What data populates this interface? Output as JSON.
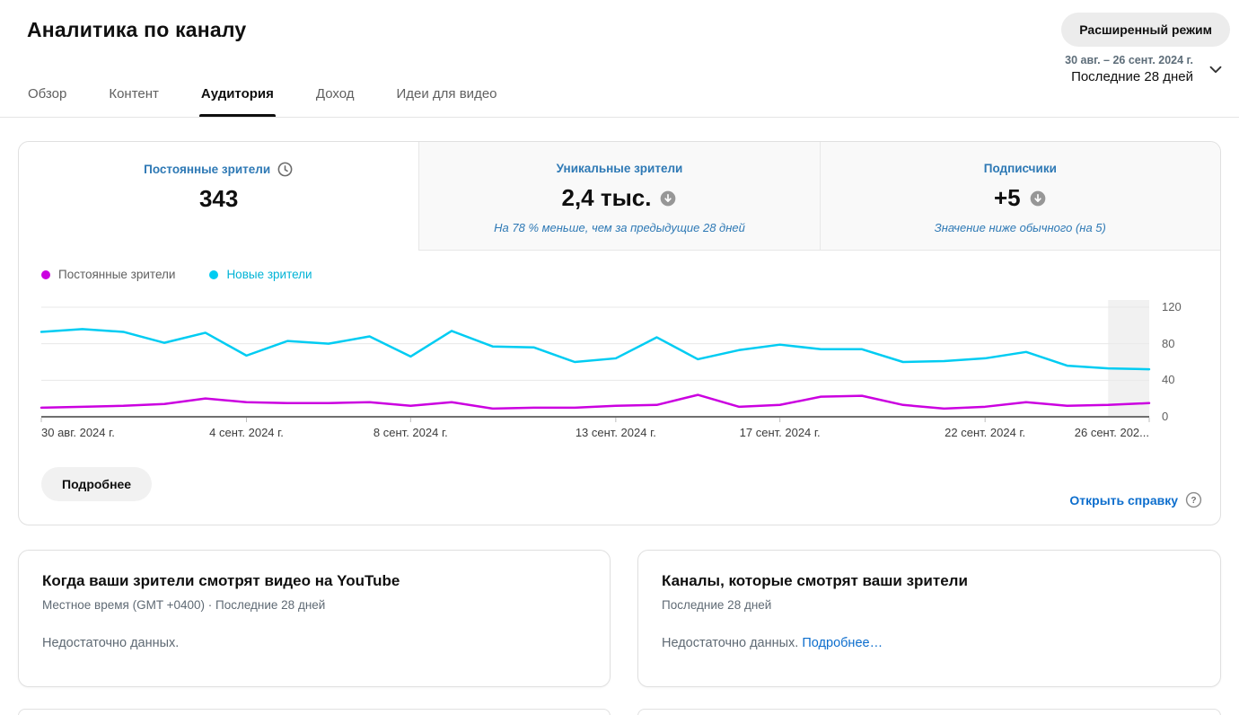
{
  "header": {
    "title": "Аналитика по каналу",
    "advanced_mode": "Расширенный режим",
    "tabs": [
      {
        "label": "Обзор"
      },
      {
        "label": "Контент"
      },
      {
        "label": "Аудитория"
      },
      {
        "label": "Доход"
      },
      {
        "label": "Идеи для видео"
      }
    ],
    "active_tab": "Аудитория",
    "date_range": "30 авг. – 26 сент. 2024 г.",
    "date_preset": "Последние 28 дней"
  },
  "metrics": [
    {
      "label": "Постоянные зрители",
      "value": "343",
      "icon": "clock-icon",
      "selected": true,
      "subtext": ""
    },
    {
      "label": "Уникальные зрители",
      "value": "2,4 тыс.",
      "icon": "arrow-down-circle-icon",
      "selected": false,
      "subtext": "На 78 % меньше, чем за предыдущие 28 дней"
    },
    {
      "label": "Подписчики",
      "value": "+5",
      "icon": "arrow-down-circle-icon",
      "selected": false,
      "subtext": "Значение ниже обычного (на 5)"
    }
  ],
  "chart_data": {
    "type": "line",
    "title": "Постоянные и новые зрители по дням",
    "n_points": 28,
    "x_start_date": "30 авг. 2024 г.",
    "x_end_date": "26 сент. 2024 г.",
    "x_ticks": [
      {
        "label": "30 авг. 2024 г.",
        "day": 0,
        "align": "left"
      },
      {
        "label": "4 сент. 2024 г.",
        "day": 5,
        "align": "center"
      },
      {
        "label": "8 сент. 2024 г.",
        "day": 9,
        "align": "center"
      },
      {
        "label": "13 сент. 2024 г.",
        "day": 14,
        "align": "center"
      },
      {
        "label": "17 сент. 2024 г.",
        "day": 18,
        "align": "center"
      },
      {
        "label": "22 сент. 2024 г.",
        "day": 23,
        "align": "center"
      },
      {
        "label": "26 сент. 202...",
        "day": 27,
        "align": "right"
      }
    ],
    "yticks": [
      0,
      40,
      80,
      120
    ],
    "ylim": [
      0,
      128
    ],
    "grid": true,
    "legend_position": "top-left",
    "shaded_from_index": 26,
    "shaded_band_color": "#f1f1f1",
    "series": [
      {
        "name": "Постоянные зрители",
        "color": "#cb00e0",
        "legend_text_color": "#606060",
        "values": [
          10,
          11,
          12,
          14,
          20,
          16,
          15,
          15,
          16,
          12,
          16,
          9,
          10,
          10,
          12,
          13,
          24,
          11,
          13,
          22,
          23,
          13,
          9,
          11,
          16,
          12,
          13,
          15
        ]
      },
      {
        "name": "Новые зрители",
        "color": "#00ccf2",
        "legend_text_color": "#00b3d6",
        "values": [
          93,
          96,
          93,
          81,
          92,
          67,
          83,
          80,
          88,
          66,
          94,
          77,
          76,
          60,
          64,
          87,
          63,
          73,
          79,
          74,
          74,
          60,
          61,
          64,
          71,
          56,
          53,
          52
        ]
      }
    ]
  },
  "chart_footer": {
    "details_button": "Подробнее",
    "help_link": "Открыть справку"
  },
  "cards": [
    {
      "title": "Когда ваши зрители смотрят видео на YouTube",
      "subtitle": "Местное время (GMT +0400) · Последние 28 дней",
      "body": "Недостаточно данных.",
      "link": ""
    },
    {
      "title": "Каналы, которые смотрят ваши зрители",
      "subtitle": "Последние 28 дней",
      "body": "Недостаточно данных.",
      "link": "Подробнее…"
    }
  ]
}
